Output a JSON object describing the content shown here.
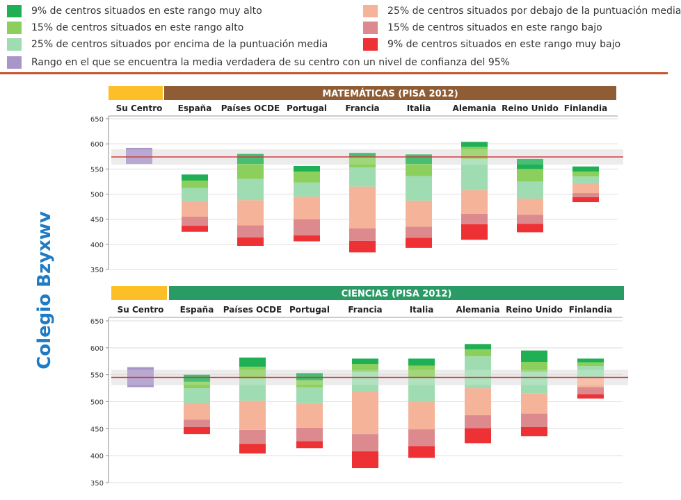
{
  "legend": [
    {
      "text": "9% de centros situados en este rango muy alto",
      "color": "#1fb055"
    },
    {
      "text": "15% de centros situados en este rango alto",
      "color": "#8ccf5d"
    },
    {
      "text": "25% de centros situados por encima de la puntuación media",
      "color": "#9fdcb2"
    },
    {
      "text": "Rango en el que se encuentra la media verdadera de su centro con un nivel de confianza del 95%",
      "color": "#a896c8"
    },
    {
      "text": "25% de centros situados por debajo de la puntuación media",
      "color": "#f5b49a"
    },
    {
      "text": "15% de centros situados en este rango bajo",
      "color": "#dc8a8e"
    },
    {
      "text": "9% de centros situados en este rango muy bajo",
      "color": "#ee3135"
    }
  ],
  "school_name": "Colegio Bzyxwv",
  "colors": {
    "header_gold": "#fcbf28",
    "math_header": "#8e5d36",
    "science_header": "#2a9b64",
    "reference_line": "#d13b3b",
    "reference_band": "#bcbcbc"
  },
  "chart_data": [
    {
      "type": "bar",
      "title": "MATEMÁTICAS (PISA 2012)",
      "categories": [
        "Su Centro",
        "España",
        "Países OCDE",
        "Portugal",
        "Francia",
        "Italia",
        "Alemania",
        "Reino Unido",
        "Finlandia"
      ],
      "ylim": [
        350,
        650
      ],
      "yticks": [
        350,
        400,
        450,
        500,
        550,
        600,
        650
      ],
      "reference_line": 574,
      "school_range": [
        560,
        592
      ],
      "segment_names": [
        "muy bajo",
        "bajo",
        "por debajo de la media",
        "por encima de la media",
        "alto",
        "muy alto"
      ],
      "boxes": [
        null,
        [
          425,
          437,
          455,
          486,
          512,
          527,
          539
        ],
        [
          397,
          414,
          438,
          488,
          530,
          560,
          580
        ],
        [
          406,
          418,
          450,
          495,
          523,
          545,
          556
        ],
        [
          384,
          407,
          432,
          515,
          553,
          573,
          582
        ],
        [
          393,
          413,
          435,
          487,
          536,
          560,
          579
        ],
        [
          409,
          440,
          461,
          508,
          570,
          594,
          604
        ],
        [
          424,
          441,
          459,
          491,
          525,
          550,
          570
        ],
        [
          484,
          494,
          502,
          520,
          535,
          545,
          555
        ]
      ]
    },
    {
      "type": "bar",
      "title": "CIENCIAS (PISA 2012)",
      "categories": [
        "Su Centro",
        "España",
        "Países OCDE",
        "Portugal",
        "Francia",
        "Italia",
        "Alemania",
        "Reino Unido",
        "Finlandia"
      ],
      "ylim": [
        350,
        650
      ],
      "yticks": [
        350,
        400,
        450,
        500,
        550,
        600,
        650
      ],
      "reference_line": 545,
      "school_range": [
        527,
        564
      ],
      "segment_names": [
        "muy bajo",
        "bajo",
        "por debajo de la media",
        "por encima de la media",
        "alto",
        "muy alto"
      ],
      "boxes": [
        null,
        [
          440,
          453,
          467,
          498,
          525,
          537,
          550
        ],
        [
          404,
          422,
          448,
          502,
          543,
          565,
          582
        ],
        [
          414,
          427,
          452,
          497,
          527,
          540,
          553
        ],
        [
          377,
          408,
          440,
          520,
          555,
          570,
          580
        ],
        [
          396,
          418,
          449,
          500,
          545,
          567,
          580
        ],
        [
          423,
          451,
          475,
          525,
          584,
          597,
          607
        ],
        [
          436,
          453,
          478,
          515,
          555,
          574,
          595
        ],
        [
          506,
          514,
          527,
          545,
          566,
          573,
          580
        ]
      ]
    }
  ]
}
